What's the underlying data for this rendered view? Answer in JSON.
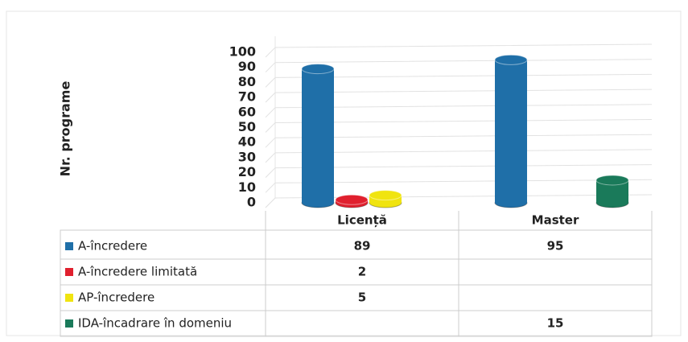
{
  "chart_data": {
    "type": "bar3d",
    "y_label": "Nr. programe",
    "categories": [
      "Licență",
      "Master"
    ],
    "series": [
      {
        "name": "A-încredere",
        "color": "#1f6fa8",
        "values": [
          89,
          95
        ]
      },
      {
        "name": "A-încredere limitată",
        "color": "#e0202e",
        "values": [
          2,
          null
        ]
      },
      {
        "name": "AP-încredere",
        "color": "#f0e410",
        "values": [
          5,
          null
        ]
      },
      {
        "name": "IDA-încadrare în domeniu",
        "color": "#1a7a5a",
        "values": [
          null,
          15
        ]
      }
    ],
    "ylim": [
      0,
      100
    ],
    "yticks": [
      0,
      10,
      20,
      30,
      40,
      50,
      60,
      70,
      80,
      90,
      100
    ],
    "grid": true
  }
}
